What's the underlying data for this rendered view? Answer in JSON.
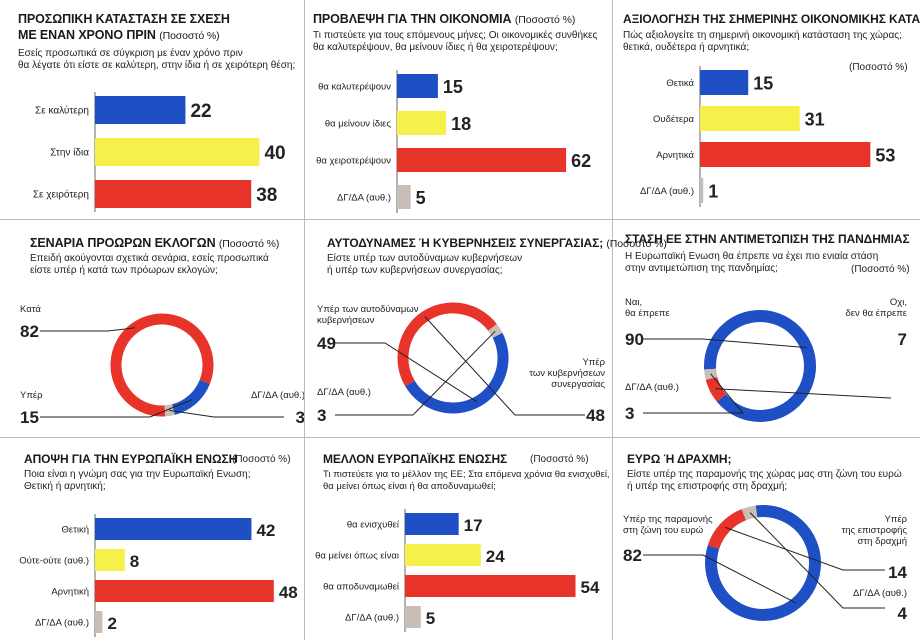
{
  "colors": {
    "blue": "#1f4fc4",
    "yellow": "#f5f04a",
    "red": "#e8332a",
    "grey": "#c8beb8",
    "axis": "#666666"
  },
  "panels": {
    "p1": {
      "title1": "ΠΡΟΣΩΠΙΚΗ ΚΑΤΑΣΤΑΣΗ ΣΕ ΣΧΕΣΗ",
      "title2": "ΜΕ ΕΝΑΝ ΧΡΟΝΟ ΠΡΙΝ",
      "pct": "(Ποσοστό %)",
      "q1": "Εσείς προσωπικά σε σύγκριση με έναν χρόνο πριν",
      "q2": "θα λέγατε ότι είστε σε καλύτερη, στην ίδια ή σε χειρότερη θέση;"
    },
    "p2": {
      "title": "ΠΡΟΒΛΕΨΗ ΓΙΑ ΤΗΝ ΟΙΚΟΝΟΜΙΑ",
      "pct": "(Ποσοστό %)",
      "q1": "Τι πιστεύετε για τους επόμενους μήνες; Οι οικονομικές συνθήκες",
      "q2": "θα καλυτερέψουν, θα μείνουν ίδιες ή θα χειροτερέψουν;"
    },
    "p3": {
      "title": "ΑΞΙΟΛΟΓΗΣΗ ΤΗΣ ΣΗΜΕΡΙΝΗΣ ΟΙΚΟΝΟΜΙΚΗΣ ΚΑΤΑΣΤΑΣΗΣ",
      "q1": "Πώς αξιολογείτε τη σημερινή οικονομική κατάσταση της χώρας;",
      "q2": "θετικά, ουδέτερα ή αρνητικά;",
      "pct": "(Ποσοστό %)"
    },
    "p4": {
      "title": "ΣΕΝΑΡΙΑ ΠΡΟΩΡΩΝ ΕΚΛΟΓΩΝ",
      "pct": "(Ποσοστό %)",
      "q1": "Επειδή ακούγονται σχετικά σενάρια, εσείς προσωπικά",
      "q2": "είστε υπέρ ή κατά των πρόωρων εκλογών;"
    },
    "p5": {
      "title": "ΑΥΤΟΔΥΝΑΜΕΣ Ή ΚΥΒΕΡΝΗΣΕΙΣ ΣΥΝΕΡΓΑΣΙΑΣ;",
      "pct": "(Ποσοστό %)",
      "q1": "Είστε υπέρ των αυτοδύναμων κυβερνήσεων",
      "q2": "ή υπέρ των κυβερνήσεων συνεργασίας;"
    },
    "p6": {
      "title": "ΣΤΑΣΗ ΕΕ ΣΤΗΝ ΑΝΤΙΜΕΤΩΠΙΣΗ ΤΗΣ ΠΑΝΔΗΜΙΑΣ",
      "q1": "Η Ευρωπαϊκή Ενωση θα έπρεπε να έχει πιο ενιαία στάση",
      "q2": "στην αντιμετώπιση της πανδημίας;",
      "pct": "(Ποσοστό %)"
    },
    "p7": {
      "title": "ΑΠΟΨΗ ΓΙΑ ΤΗΝ ΕΥΡΩΠΑΪΚΗ ΕΝΩΣΗ",
      "pct": "(Ποσοστό %)",
      "q1": "Ποια είναι η γνώμη σας για την Ευρωπαϊκή Ενωση;",
      "q2": "Θετική ή αρνητική;"
    },
    "p8": {
      "title": "ΜΕΛΛΟΝ ΕΥΡΩΠΑΪΚΗΣ ΕΝΩΣΗΣ",
      "pct": "(Ποσοστό %)",
      "q1": "Τι πιστεύετε για το μέλλον της ΕΕ; Στα επόμενα χρόνια θα ενισχυθεί,",
      "q2": "θα μείνει όπως είναι ή θα αποδυναμωθεί;"
    },
    "p9": {
      "title": "ΕΥΡΩ Ή ΔΡΑΧΜΗ;",
      "q1": "Είστε υπέρ της παραμονής της χώρας μας στη ζώνη του ευρώ",
      "q2": "ή υπέρ της επιστροφής στη δραχμή;",
      "pct": "(Ποσοστό %)"
    }
  },
  "chart_data": [
    {
      "type": "bar",
      "orientation": "horizontal",
      "title": "ΠΡΟΣΩΠΙΚΗ ΚΑΤΑΣΤΑΣΗ ΣΕ ΣΧΕΣΗ ΜΕ ΕΝΑΝ ΧΡΟΝΟ ΠΡΙΝ",
      "categories": [
        "Σε καλύτερη",
        "Στην ίδια",
        "Σε χειρότερη"
      ],
      "values": [
        22,
        40,
        38
      ],
      "colors": [
        "#1f4fc4",
        "#f5f04a",
        "#e8332a"
      ],
      "xlim": [
        0,
        45
      ]
    },
    {
      "type": "bar",
      "orientation": "horizontal",
      "title": "ΠΡΟΒΛΕΨΗ ΓΙΑ ΤΗΝ ΟΙΚΟΝΟΜΙΑ",
      "categories": [
        "θα καλυτερέψουν",
        "θα μείνουν ίδιες",
        "θα χειροτερέψουν",
        "ΔΓ/ΔΑ (αυθ.)"
      ],
      "values": [
        15,
        18,
        62,
        5
      ],
      "colors": [
        "#1f4fc4",
        "#f5f04a",
        "#e8332a",
        "#c8beb8"
      ],
      "xlim": [
        0,
        66
      ]
    },
    {
      "type": "bar",
      "orientation": "horizontal",
      "title": "ΑΞΙΟΛΟΓΗΣΗ ΤΗΣ ΣΗΜΕΡΙΝΗΣ ΟΙΚΟΝΟΜΙΚΗΣ ΚΑΤΑΣΤΑΣΗΣ",
      "categories": [
        "Θετικά",
        "Ουδέτερα",
        "Αρνητικά",
        "ΔΓ/ΔΑ (αυθ.)"
      ],
      "values": [
        15,
        31,
        53,
        1
      ],
      "colors": [
        "#1f4fc4",
        "#f5f04a",
        "#e8332a",
        "#c8beb8"
      ],
      "xlim": [
        0,
        56
      ]
    },
    {
      "type": "pie",
      "variant": "donut",
      "title": "ΣΕΝΑΡΙΑ ΠΡΟΩΡΩΝ ΕΚΛΟΓΩΝ",
      "slices": [
        {
          "label": "Κατά",
          "value": 82,
          "color": "#e8332a"
        },
        {
          "label": "Υπέρ",
          "value": 15,
          "color": "#1f4fc4"
        },
        {
          "label": "ΔΓ/ΔΑ (αυθ.)",
          "value": 3,
          "color": "#c8beb8"
        }
      ]
    },
    {
      "type": "pie",
      "variant": "donut",
      "title": "ΑΥΤΟΔΥΝΑΜΕΣ Ή ΚΥΒΕΡΝΗΣΕΙΣ ΣΥΝΕΡΓΑΣΙΑΣ;",
      "slices": [
        {
          "label": "Υπέρ των αυτοδύναμων κυβερνήσεων",
          "value": 49,
          "color": "#1f4fc4"
        },
        {
          "label": "Υπέρ των κυβερνήσεων συνεργασίας",
          "value": 48,
          "color": "#e8332a"
        },
        {
          "label": "ΔΓ/ΔΑ (αυθ.)",
          "value": 3,
          "color": "#c8beb8"
        }
      ]
    },
    {
      "type": "pie",
      "variant": "donut",
      "title": "ΣΤΑΣΗ ΕΕ ΣΤΗΝ ΑΝΤΙΜΕΤΩΠΙΣΗ ΤΗΣ ΠΑΝΔΗΜΙΑΣ",
      "slices": [
        {
          "label": "Ναι, θα έπρεπε",
          "value": 90,
          "color": "#1f4fc4"
        },
        {
          "label": "Οχι, δεν θα έπρεπε",
          "value": 7,
          "color": "#e8332a"
        },
        {
          "label": "ΔΓ/ΔΑ (αυθ.)",
          "value": 3,
          "color": "#c8beb8"
        }
      ]
    },
    {
      "type": "bar",
      "orientation": "horizontal",
      "title": "ΑΠΟΨΗ ΓΙΑ ΤΗΝ ΕΥΡΩΠΑΪΚΗ ΕΝΩΣΗ",
      "categories": [
        "Θετική",
        "Ούτε-ούτε (αυθ.)",
        "Αρνητική",
        "ΔΓ/ΔΑ (αυθ.)"
      ],
      "values": [
        42,
        8,
        48,
        2
      ],
      "colors": [
        "#1f4fc4",
        "#f5f04a",
        "#e8332a",
        "#c8beb8"
      ],
      "xlim": [
        0,
        51
      ]
    },
    {
      "type": "bar",
      "orientation": "horizontal",
      "title": "ΜΕΛΛΟΝ ΕΥΡΩΠΑΪΚΗΣ ΕΝΩΣΗΣ",
      "categories": [
        "θα ενισχυθεί",
        "θα μείνει όπως είναι",
        "θα αποδυναμωθεί",
        "ΔΓ/ΔΑ (αυθ.)"
      ],
      "values": [
        17,
        24,
        54,
        5
      ],
      "colors": [
        "#1f4fc4",
        "#f5f04a",
        "#e8332a",
        "#c8beb8"
      ],
      "xlim": [
        0,
        57
      ]
    },
    {
      "type": "pie",
      "variant": "donut",
      "title": "ΕΥΡΩ Ή ΔΡΑΧΜΗ;",
      "slices": [
        {
          "label": "Υπέρ της παραμονής στη ζώνη του ευρώ",
          "value": 82,
          "color": "#1f4fc4"
        },
        {
          "label": "Υπέρ της επιστροφής στη δραχμή",
          "value": 14,
          "color": "#e8332a"
        },
        {
          "label": "ΔΓ/ΔΑ (αυθ.)",
          "value": 4,
          "color": "#c8beb8"
        }
      ]
    }
  ]
}
